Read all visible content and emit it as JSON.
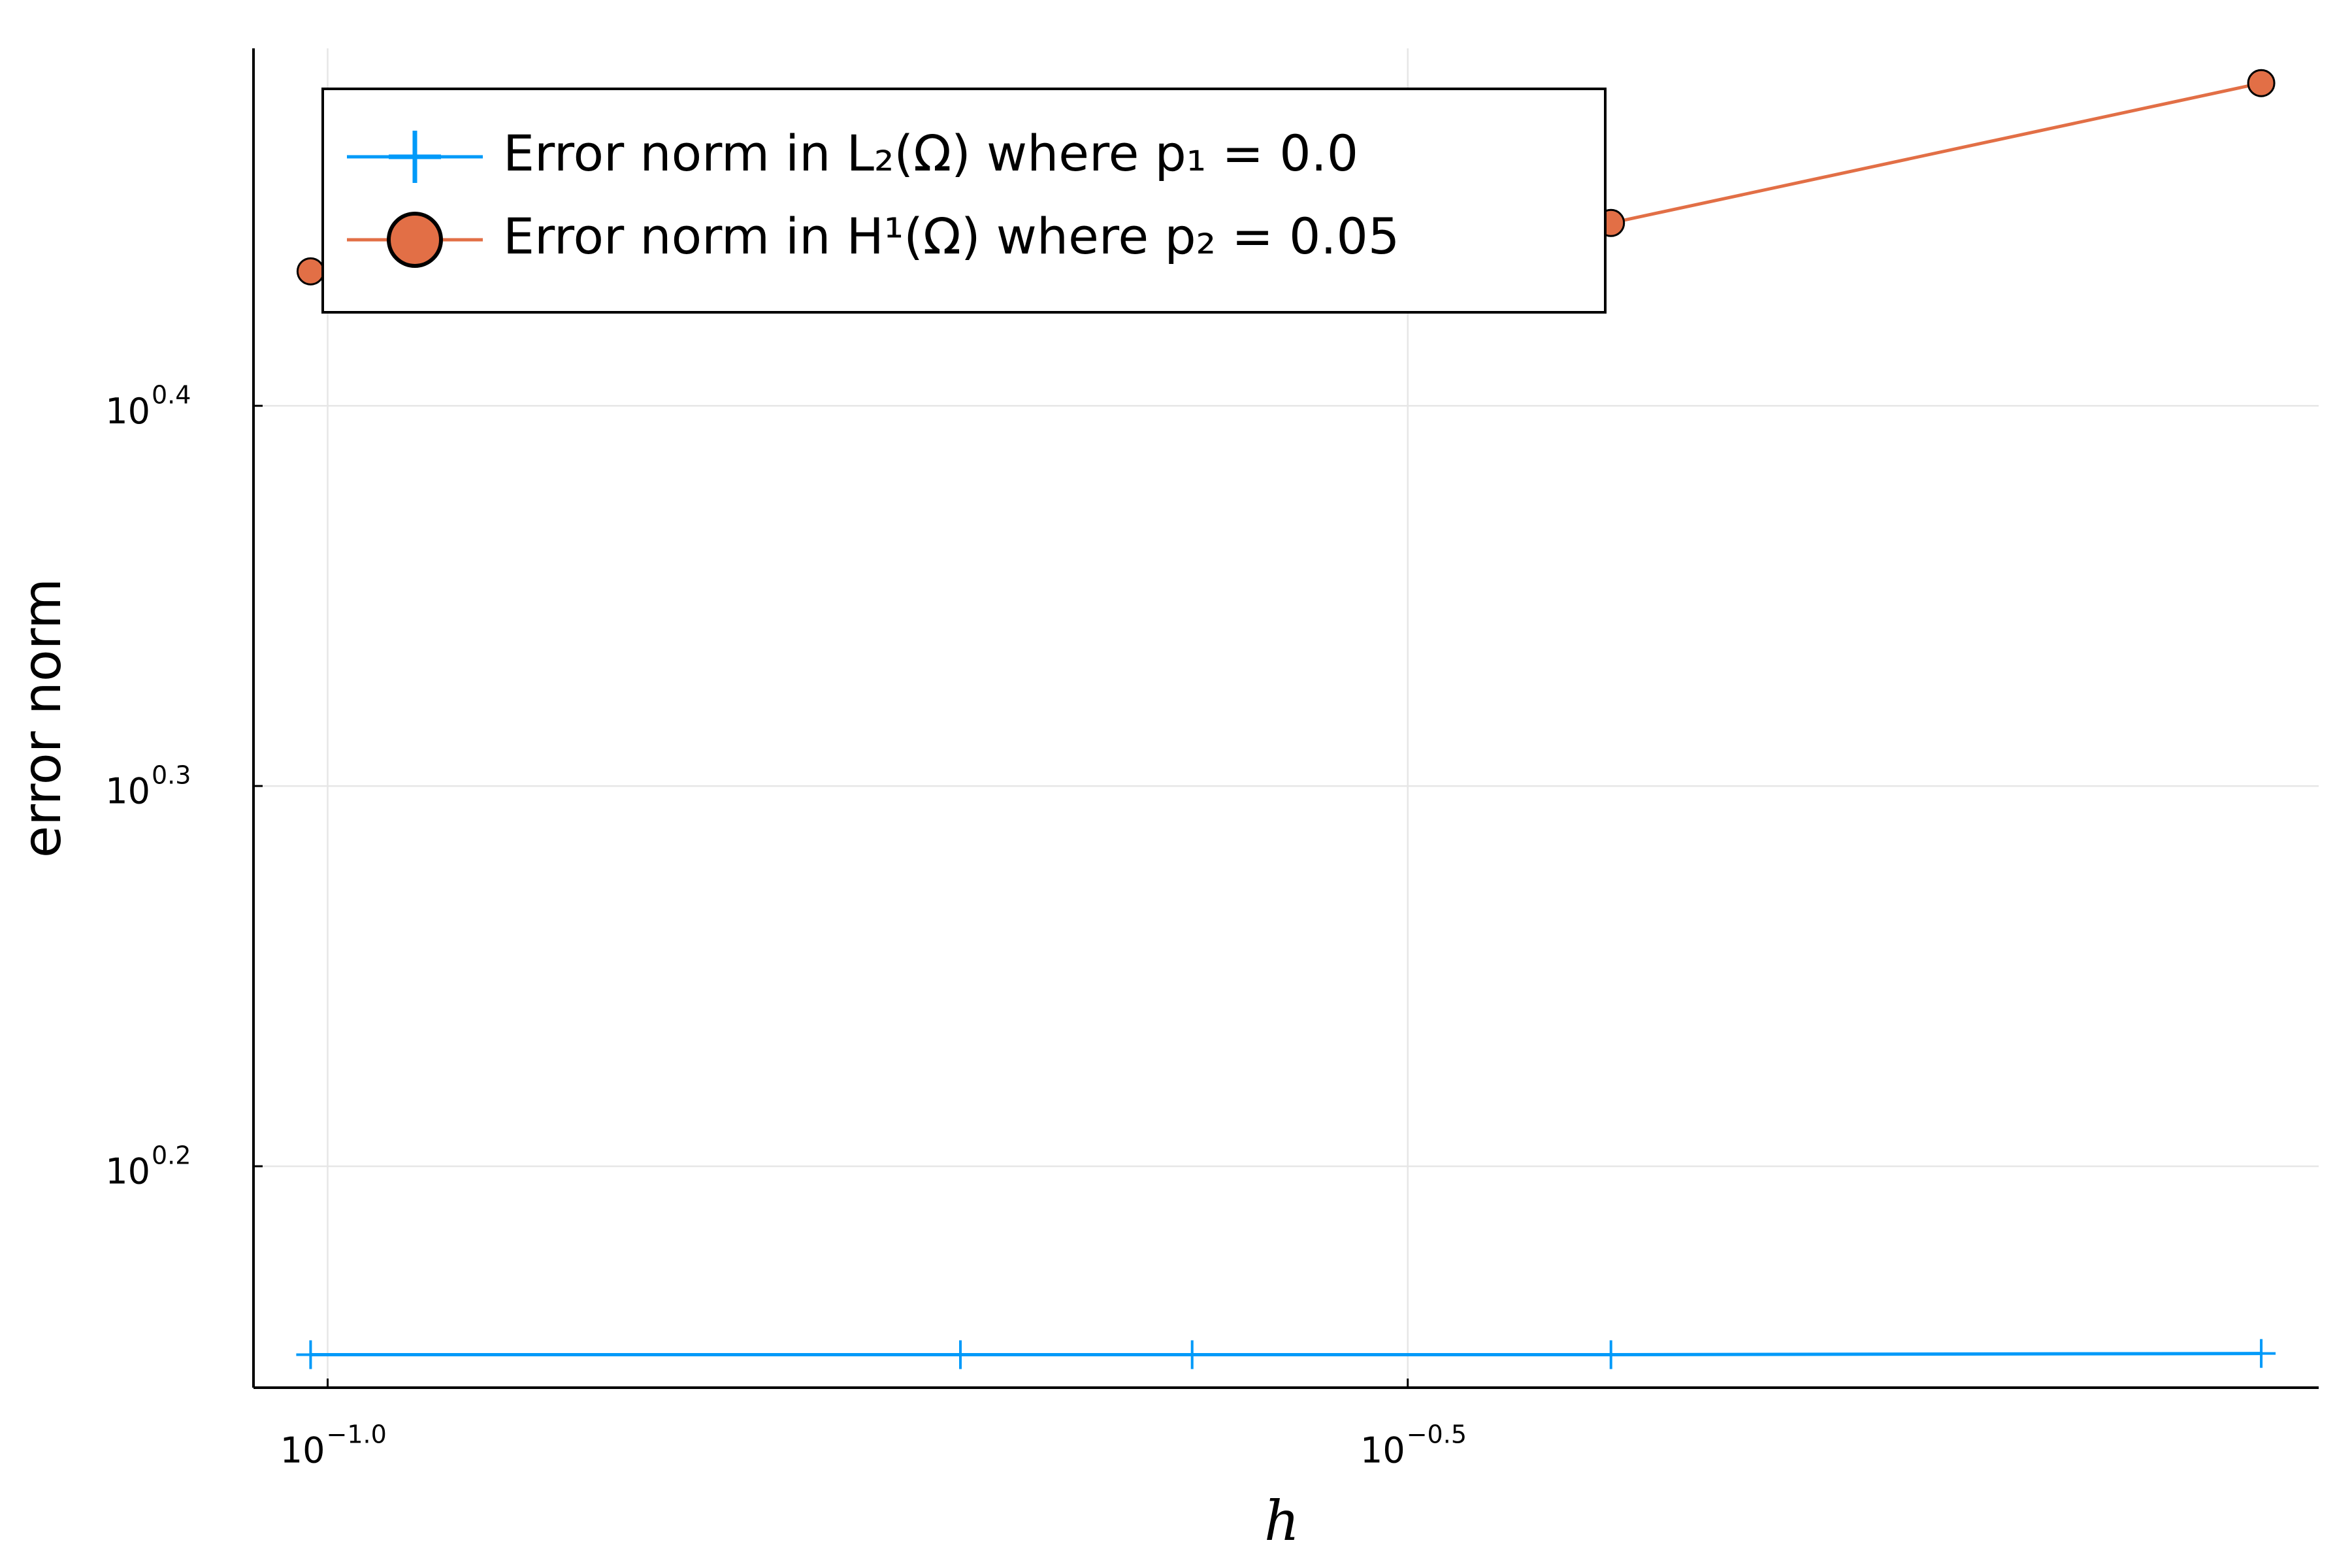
{
  "chart_data": {
    "type": "line",
    "xlabel": "h",
    "ylabel": "error norm",
    "x": [
      0.0982,
      0.1963,
      0.2513,
      0.3927,
      0.7854
    ],
    "series": [
      {
        "name": "Error norm in L₂(Ω) where p₁ = 0.0",
        "color": "#009af9",
        "marker": "cross",
        "values": [
          1.414,
          1.414,
          1.414,
          1.414,
          1.415
        ]
      },
      {
        "name": "Error norm in H¹(Ω) where p₂ = 0.05",
        "color": "#e26f46",
        "marker": "circle",
        "values": [
          2.725,
          2.765,
          2.779,
          2.806,
          3.054
        ]
      }
    ],
    "xscale": "log",
    "yscale": "log",
    "xlim": [
      0.0924,
      0.835
    ],
    "ylim": [
      1.386,
      3.119
    ],
    "xticks": [
      {
        "value": 0.1,
        "label": [
          "10",
          "−1.0"
        ]
      },
      {
        "value": 0.31623,
        "label": [
          "10",
          "−0.5"
        ]
      }
    ],
    "yticks": [
      {
        "value": 1.5849,
        "label": [
          "10",
          "0.2"
        ]
      },
      {
        "value": 1.9953,
        "label": [
          "10",
          "0.3"
        ]
      },
      {
        "value": 2.5119,
        "label": [
          "10",
          "0.4"
        ]
      }
    ],
    "grid": true,
    "legend": "top-left"
  }
}
